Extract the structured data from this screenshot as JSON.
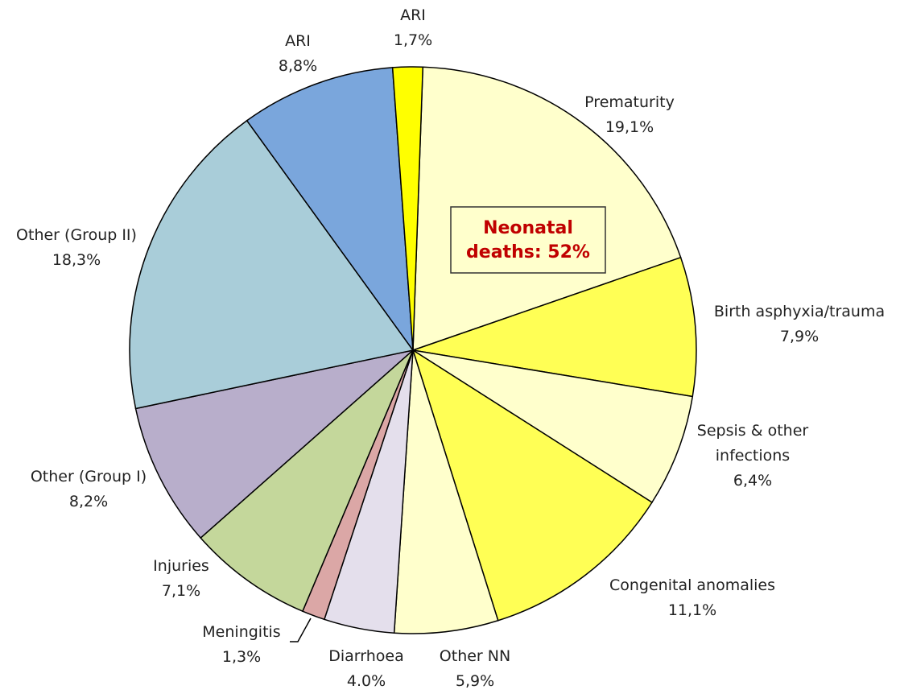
{
  "chart_data": {
    "type": "pie",
    "categories": [
      "Prematurity",
      "Birth asphyxia/trauma",
      "Sepsis & other infections",
      "Congenital anomalies",
      "Other NN",
      "Diarrhoea",
      "Meningitis",
      "Injuries",
      "Other (Group I)",
      "Other (Group II)",
      "ARI",
      "ARI"
    ],
    "values": [
      19.1,
      7.9,
      6.4,
      11.1,
      5.9,
      4.0,
      1.3,
      7.1,
      8.2,
      18.3,
      8.8,
      1.7
    ],
    "value_labels": [
      "19,1%",
      "7,9%",
      "6,4%",
      "11,1%",
      "5,9%",
      "4.0%",
      "1,3%",
      "7,1%",
      "8,2%",
      "18,3%",
      "8,8%",
      "1,7%"
    ],
    "colors": [
      "#ffffcc",
      "#ffff55",
      "#ffffcc",
      "#ffff55",
      "#ffffcc",
      "#e4dfec",
      "#dba7a6",
      "#c4d79b",
      "#b8aecb",
      "#a9cdd9",
      "#7aa6dc",
      "#ffff00"
    ],
    "annotation": [
      "Neonatal",
      "deaths: 52%"
    ]
  }
}
